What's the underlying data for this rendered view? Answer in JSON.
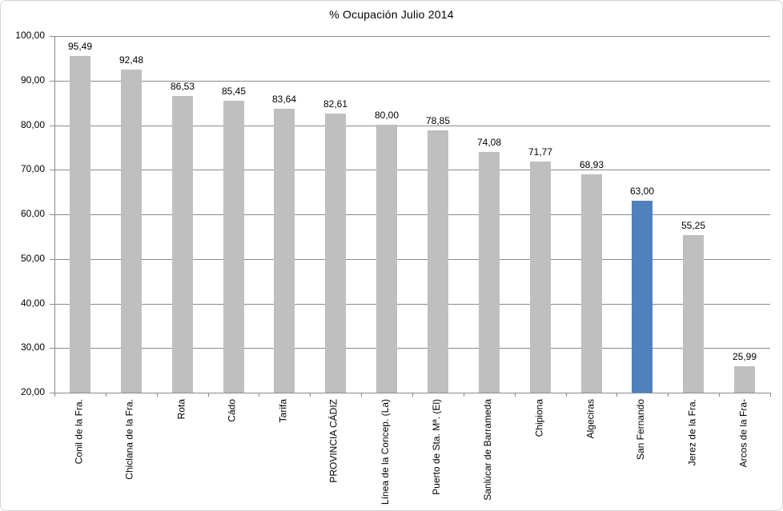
{
  "chart_data": {
    "type": "bar",
    "title": "% Ocupación Julio 2014",
    "categories": [
      "Conil de la Fra.",
      "Chiclana de la Fra.",
      "Rota",
      "Cádo",
      "Tarifa",
      "PROVINCIA CÁDIZ",
      "Línea de la Concep. (La)",
      "Puerto de Sta. Mª. (El)",
      "Sanlúcar de Barrameda",
      "Chipiona",
      "Algeciras",
      "San Fernando",
      "Jerez de la Fra.",
      "Arcos de la Fra-"
    ],
    "values": [
      95.49,
      92.48,
      86.53,
      85.45,
      83.64,
      82.61,
      80.0,
      78.85,
      74.08,
      71.77,
      68.93,
      63.0,
      55.25,
      25.99
    ],
    "value_labels": [
      "95,49",
      "92,48",
      "86,53",
      "85,45",
      "83,64",
      "82,61",
      "80,00",
      "78,85",
      "74,08",
      "71,77",
      "68,93",
      "63,00",
      "55,25",
      "25,99"
    ],
    "highlight_index": 11,
    "highlighted_category": "San Fernando",
    "ylim": [
      20,
      100
    ],
    "ytick_step": 10,
    "ytick_labels_top_to_bottom": [
      "100,00",
      "90,00",
      "80,00",
      "70,00",
      "60,00",
      "50,00",
      "40,00",
      "30,00",
      "20,00"
    ],
    "grid": true,
    "legend": false,
    "xlabel": "",
    "ylabel": "",
    "colors": {
      "bar_default": "#bfbfbf",
      "bar_highlight": "#4f81bd",
      "gridline": "#8a8a8a",
      "axis": "#8a8a8a",
      "text": "#000000",
      "chart_border": "#d3d3d3",
      "background": "#ffffff"
    }
  }
}
